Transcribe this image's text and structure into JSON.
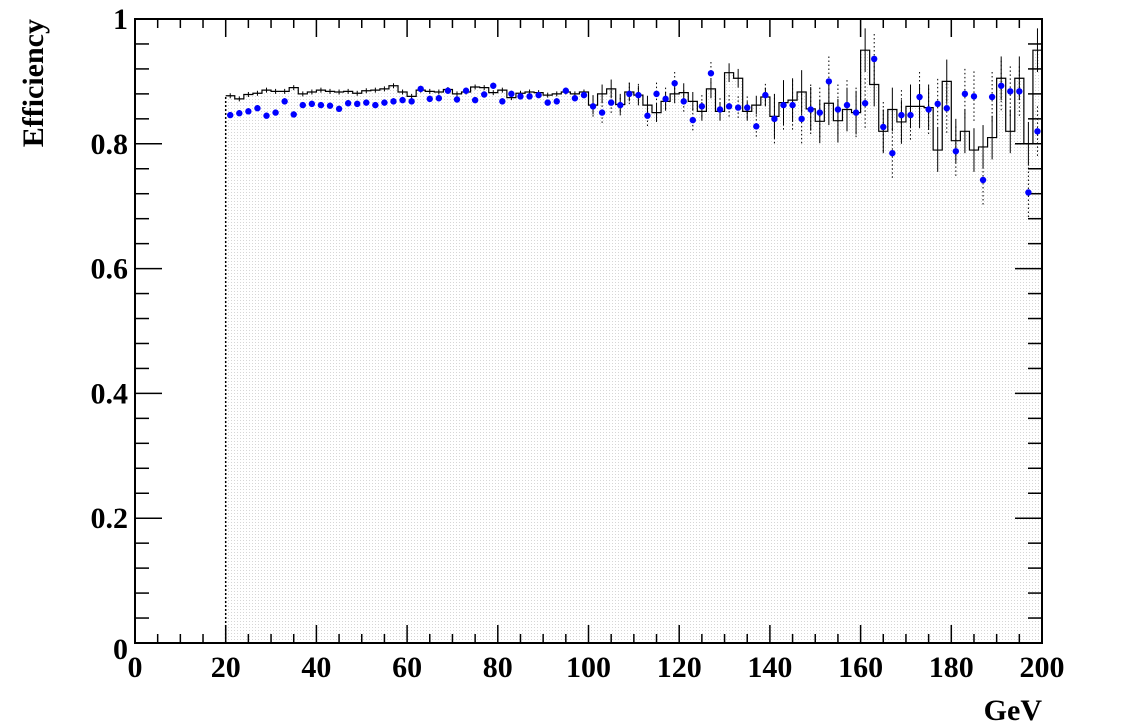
{
  "chart_data": {
    "type": "scatter",
    "title": "",
    "xlabel": "GeV",
    "ylabel": "Efficiency",
    "xlim": [
      0,
      200
    ],
    "ylim": [
      0,
      1
    ],
    "x_ticks": [
      0,
      20,
      40,
      60,
      80,
      100,
      120,
      140,
      160,
      180,
      200
    ],
    "y_ticks": [
      0,
      0.2,
      0.4,
      0.6,
      0.8,
      1
    ],
    "x_tick_labels": [
      "0",
      "20",
      "40",
      "60",
      "80",
      "100",
      "120",
      "140",
      "160",
      "180",
      "200"
    ],
    "y_tick_labels": [
      "0",
      "0.2",
      "0.4",
      "0.6",
      "0.8",
      "1"
    ],
    "grid": false,
    "bin_width": 2,
    "series": [
      {
        "style": "histogram",
        "color": "#000000",
        "x": [
          21,
          23,
          25,
          27,
          29,
          31,
          33,
          35,
          37,
          39,
          41,
          43,
          45,
          47,
          49,
          51,
          53,
          55,
          57,
          59,
          61,
          63,
          65,
          67,
          69,
          71,
          73,
          75,
          77,
          79,
          81,
          83,
          85,
          87,
          89,
          91,
          93,
          95,
          97,
          99,
          101,
          103,
          105,
          107,
          109,
          111,
          113,
          115,
          117,
          119,
          121,
          123,
          125,
          127,
          129,
          131,
          133,
          135,
          137,
          139,
          141,
          143,
          145,
          147,
          149,
          151,
          153,
          155,
          157,
          159,
          161,
          163,
          165,
          167,
          169,
          171,
          173,
          175,
          177,
          179,
          181,
          183,
          185,
          187,
          189,
          191,
          193,
          195,
          197,
          199
        ],
        "values": [
          0.877,
          0.872,
          0.879,
          0.881,
          0.886,
          0.884,
          0.884,
          0.89,
          0.88,
          0.883,
          0.886,
          0.884,
          0.883,
          0.884,
          0.881,
          0.885,
          0.886,
          0.888,
          0.893,
          0.883,
          0.876,
          0.886,
          0.884,
          0.883,
          0.887,
          0.88,
          0.883,
          0.891,
          0.89,
          0.882,
          0.886,
          0.874,
          0.881,
          0.883,
          0.882,
          0.878,
          0.88,
          0.883,
          0.88,
          0.883,
          0.862,
          0.88,
          0.888,
          0.863,
          0.883,
          0.878,
          0.862,
          0.85,
          0.868,
          0.88,
          0.882,
          0.868,
          0.852,
          0.888,
          0.852,
          0.914,
          0.905,
          0.852,
          0.862,
          0.875,
          0.844,
          0.866,
          0.87,
          0.883,
          0.856,
          0.836,
          0.865,
          0.837,
          0.855,
          0.85,
          0.95,
          0.895,
          0.82,
          0.855,
          0.835,
          0.86,
          0.86,
          0.858,
          0.79,
          0.9,
          0.805,
          0.82,
          0.79,
          0.795,
          0.81,
          0.905,
          0.82,
          0.905,
          0.8,
          0.95
        ]
      },
      {
        "style": "markers",
        "color": "#0000ff",
        "x": [
          21,
          23,
          25,
          27,
          29,
          31,
          33,
          35,
          37,
          39,
          41,
          43,
          45,
          47,
          49,
          51,
          53,
          55,
          57,
          59,
          61,
          63,
          65,
          67,
          69,
          71,
          73,
          75,
          77,
          79,
          81,
          83,
          85,
          87,
          89,
          91,
          93,
          95,
          97,
          99,
          101,
          103,
          105,
          107,
          109,
          111,
          113,
          115,
          117,
          119,
          121,
          123,
          125,
          127,
          129,
          131,
          133,
          135,
          137,
          139,
          141,
          143,
          145,
          147,
          149,
          151,
          153,
          155,
          157,
          159,
          161,
          163,
          165,
          167,
          169,
          171,
          173,
          175,
          177,
          179,
          181,
          183,
          185,
          187,
          189,
          191,
          193,
          195,
          197,
          199
        ],
        "values": [
          0.846,
          0.849,
          0.852,
          0.857,
          0.845,
          0.85,
          0.868,
          0.847,
          0.862,
          0.864,
          0.862,
          0.861,
          0.856,
          0.865,
          0.864,
          0.866,
          0.862,
          0.866,
          0.868,
          0.87,
          0.868,
          0.888,
          0.872,
          0.873,
          0.885,
          0.871,
          0.885,
          0.87,
          0.879,
          0.893,
          0.868,
          0.88,
          0.876,
          0.876,
          0.878,
          0.866,
          0.868,
          0.885,
          0.873,
          0.878,
          0.86,
          0.85,
          0.866,
          0.862,
          0.88,
          0.878,
          0.845,
          0.88,
          0.872,
          0.897,
          0.868,
          0.838,
          0.86,
          0.913,
          0.855,
          0.86,
          0.858,
          0.858,
          0.828,
          0.878,
          0.84,
          0.862,
          0.862,
          0.84,
          0.855,
          0.85,
          0.9,
          0.855,
          0.862,
          0.85,
          0.865,
          0.936,
          0.827,
          0.785,
          0.846,
          0.846,
          0.875,
          0.855,
          0.864,
          0.857,
          0.788,
          0.88,
          0.876,
          0.742,
          0.875,
          0.893,
          0.884,
          0.884,
          0.722,
          0.82
        ]
      }
    ]
  }
}
